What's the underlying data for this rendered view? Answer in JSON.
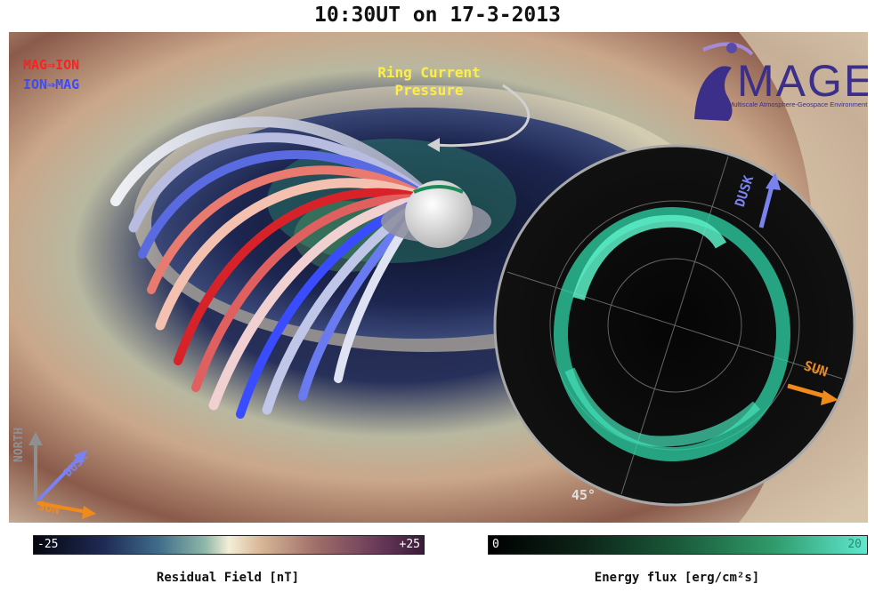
{
  "title": "10:30UT on 17-3-2013",
  "legend": {
    "mag_to_ion": "MAG⇒ION",
    "ion_to_mag": "ION⇒MAG"
  },
  "annotation": {
    "ring_current_line1": "Ring Current",
    "ring_current_line2": "Pressure"
  },
  "logo": {
    "name": "MAGE",
    "subtitle": "Multiscale Atmosphere-Geospace Environment"
  },
  "compass": {
    "north": "NORTH",
    "dusk": "DUSK",
    "sun": "SUN"
  },
  "polar_view": {
    "dusk": "DUSK",
    "sun": "SUN",
    "lat_label": "45°"
  },
  "colorbar_left": {
    "min": "-25",
    "max": "+25",
    "title": "Residual Field [nT]"
  },
  "colorbar_right": {
    "min": "0",
    "max": "20",
    "title": "Energy flux [erg/cm²s]"
  },
  "colors": {
    "mag_to_ion": "#ff2020",
    "ion_to_mag": "#3a4cff",
    "dusk_arrow": "#7a82f0",
    "sun_arrow": "#f08a1a",
    "annotation": "#ffee44"
  }
}
